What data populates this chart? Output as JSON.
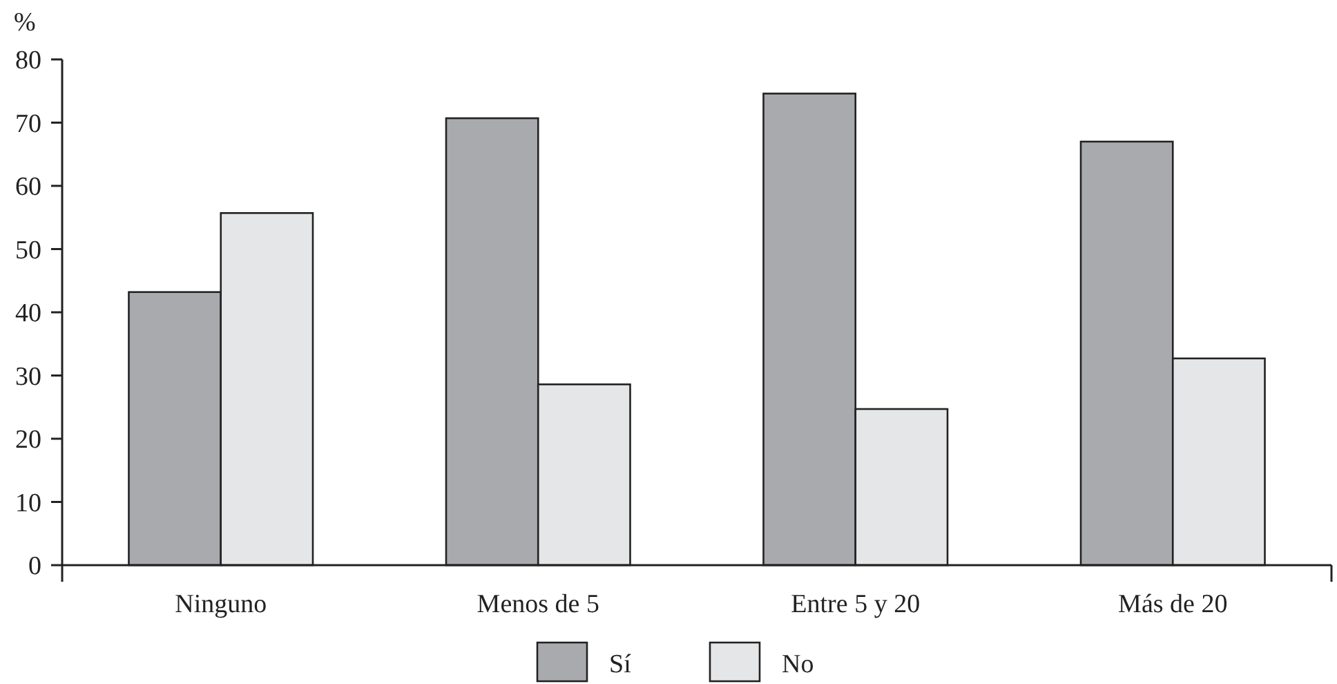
{
  "chart_data": {
    "type": "bar",
    "ylabel": "%",
    "categories": [
      "Ninguno",
      "Menos de 5",
      "Entre 5 y 20",
      "Más de 20"
    ],
    "series": [
      {
        "name": "Sí",
        "color": "#a9aaad",
        "values": [
          43.2,
          70.7,
          74.6,
          67.0
        ]
      },
      {
        "name": "No",
        "color": "#e5e6e7",
        "values": [
          55.7,
          28.6,
          24.7,
          32.7
        ]
      }
    ],
    "ylim": [
      0,
      80
    ],
    "yticks": [
      0,
      10,
      20,
      30,
      40,
      50,
      60,
      70,
      80
    ],
    "grid": false,
    "legend": "bottom"
  }
}
